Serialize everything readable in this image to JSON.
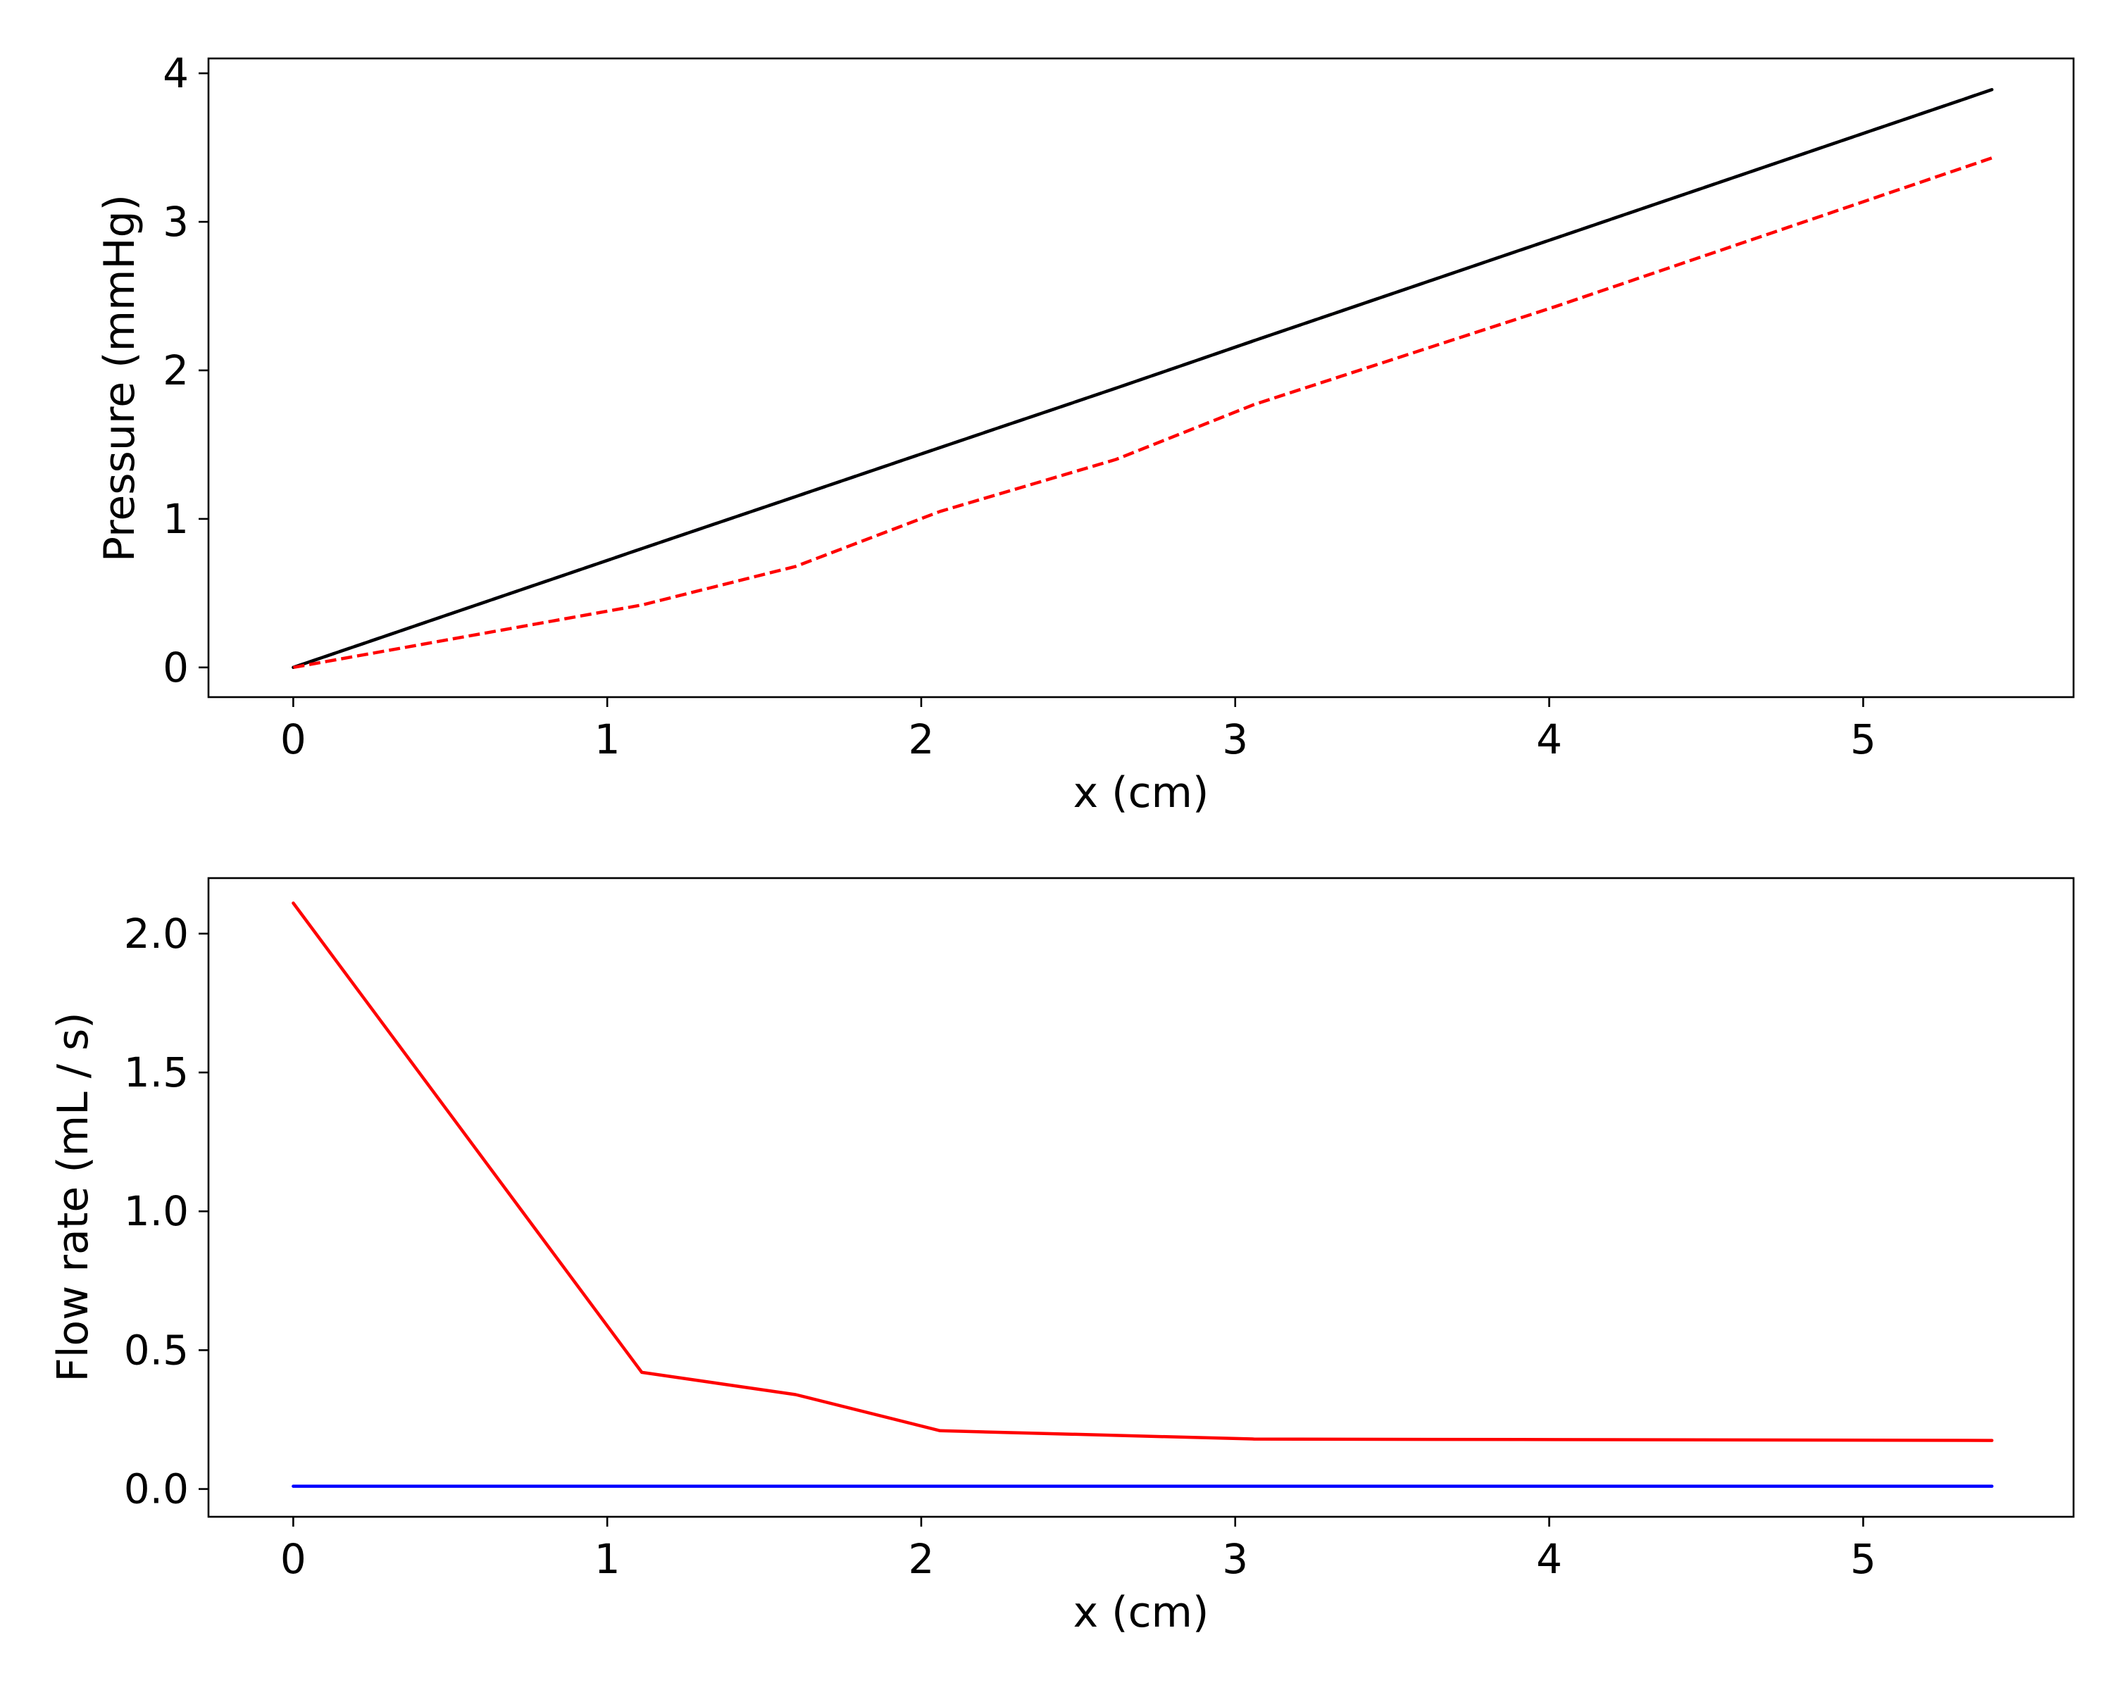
{
  "chart_data": [
    {
      "type": "line",
      "title": "",
      "xlabel": "x (cm)",
      "ylabel": "Pressure (mmHg)",
      "xlim": [
        -0.27,
        5.67
      ],
      "ylim": [
        -0.2,
        4.1
      ],
      "xticks": [
        0,
        1,
        2,
        3,
        4,
        5
      ],
      "xtick_labels": [
        "0",
        "1",
        "2",
        "3",
        "4",
        "5"
      ],
      "yticks": [
        0,
        1,
        2,
        3,
        4
      ],
      "ytick_labels": [
        "0",
        "1",
        "2",
        "3",
        "4"
      ],
      "grid": false,
      "series": [
        {
          "color": "#000080",
          "style": "dashed",
          "x": [
            0,
            1.11,
            1.6,
            2.06,
            2.62,
            3.06,
            4.02,
            5.41
          ],
          "y": [
            0,
            0.8,
            1.15,
            1.48,
            1.88,
            2.2,
            2.89,
            3.89
          ]
        },
        {
          "color": "#000000",
          "style": "solid",
          "x": [
            0,
            1.11,
            1.6,
            2.06,
            2.62,
            3.06,
            4.02,
            5.41
          ],
          "y": [
            0,
            0.8,
            1.15,
            1.48,
            1.88,
            2.2,
            2.89,
            3.89
          ]
        },
        {
          "color": "#ff0000",
          "style": "dashed",
          "x": [
            0,
            1.11,
            1.6,
            2.06,
            2.62,
            3.06,
            4.02,
            5.41
          ],
          "y": [
            0,
            0.42,
            0.68,
            1.05,
            1.4,
            1.77,
            2.43,
            3.43
          ]
        }
      ]
    },
    {
      "type": "line",
      "title": "",
      "xlabel": "x (cm)",
      "ylabel": "Flow rate (mL / s)",
      "xlim": [
        -0.27,
        5.67
      ],
      "ylim": [
        -0.1,
        2.2
      ],
      "xticks": [
        0,
        1,
        2,
        3,
        4,
        5
      ],
      "xtick_labels": [
        "0",
        "1",
        "2",
        "3",
        "4",
        "5"
      ],
      "yticks": [
        0,
        0.5,
        1,
        1.5,
        2
      ],
      "ytick_labels": [
        "0.0",
        "0.5",
        "1.0",
        "1.5",
        "2.0"
      ],
      "grid": false,
      "series": [
        {
          "color": "#ff0000",
          "style": "solid",
          "x": [
            0,
            1.11,
            1.6,
            2.06,
            3.06,
            4.02,
            5.41
          ],
          "y": [
            2.11,
            0.42,
            0.34,
            0.21,
            0.18,
            0.178,
            0.175
          ]
        },
        {
          "color": "#0000ff",
          "style": "solid",
          "x": [
            0,
            1.11,
            1.6,
            2.06,
            3.06,
            4.02,
            5.41
          ],
          "y": [
            0.01,
            0.01,
            0.01,
            0.01,
            0.01,
            0.01,
            0.01
          ]
        }
      ]
    }
  ]
}
